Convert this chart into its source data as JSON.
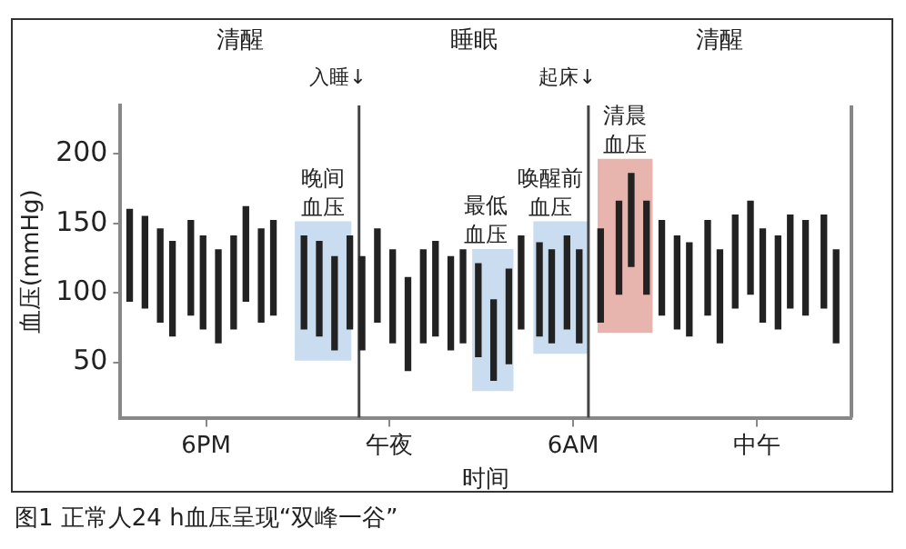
{
  "chart_data": {
    "type": "bar",
    "title": "图1 正常人24 h血压呈现“双峰一谷”",
    "xlabel": "时间",
    "ylabel": "血压(mmHg)",
    "x": [
      "--01-01T15:30",
      "--01-01T16:00",
      "--01-01T16:30",
      "--01-01T16:54",
      "--01-01T17:30",
      "--01-01T17:54",
      "--01-01T18:24",
      "--01-01T18:54",
      "--01-01T19:18",
      "--01-01T19:48",
      "--01-01T20:12",
      "--01-01T21:12",
      "--01-01T21:42",
      "--01-01T22:12",
      "--01-01T22:42",
      "--01-01T23:06",
      "--01-01T23:36",
      "--01-02T00:06",
      "--01-02T00:36",
      "--01-02T01:06",
      "--01-02T01:30",
      "--01-02T02:00",
      "--01-02T02:24",
      "--01-02T02:54",
      "--01-02T03:24",
      "--01-02T03:54",
      "--01-02T04:18",
      "--01-02T04:54",
      "--01-02T05:18",
      "--01-02T05:48",
      "--01-02T06:12",
      "--01-02T06:54",
      "--01-02T07:30",
      "--01-02T07:54",
      "--01-02T08:24",
      "--01-02T08:54",
      "--01-02T09:24",
      "--01-02T09:48",
      "--01-02T10:24",
      "--01-02T10:48",
      "--01-02T11:18",
      "--01-02T11:48",
      "--01-02T12:12",
      "--01-02T12:42",
      "--01-02T13:06",
      "--01-02T13:36",
      "--01-02T14:12",
      "--01-02T14:36"
    ],
    "base": [
      94,
      89,
      79,
      69,
      84,
      74,
      64,
      74,
      94,
      79,
      84,
      74,
      69,
      59,
      74,
      59,
      79,
      64,
      44,
      64,
      69,
      59,
      64,
      54,
      37,
      49,
      74,
      69,
      64,
      74,
      64,
      79,
      99,
      119,
      99,
      84,
      74,
      69,
      84,
      64,
      89,
      99,
      79,
      74,
      89,
      84,
      89,
      64
    ],
    "values": [
      66,
      66,
      67,
      68,
      68,
      67,
      67,
      67,
      68,
      67,
      68,
      67,
      68,
      67,
      67,
      67,
      67,
      67,
      67,
      67,
      68,
      67,
      67,
      67,
      58,
      68,
      67,
      67,
      67,
      67,
      67,
      67,
      67,
      67,
      67,
      68,
      67,
      67,
      68,
      67,
      67,
      67,
      67,
      67,
      67,
      68,
      67,
      67
    ],
    "color": "#222222",
    "xlim": [
      "--01-01T15:12",
      "--01-02T15:06"
    ],
    "xticks": [
      {
        "value": "--01-01T18:00",
        "label": "6PM"
      },
      {
        "value": "--01-02T00:00",
        "label": "午夜"
      },
      {
        "value": "--01-02T06:00",
        "label": "6AM"
      },
      {
        "value": "--01-02T12:00",
        "label": "中午"
      }
    ],
    "ylim": [
      10,
      235
    ],
    "yticks": [
      50,
      100,
      150,
      200
    ],
    "ref_lines": [
      {
        "axis": "x",
        "value": "--01-01T23:00",
        "label": "入睡↓",
        "color": "#444444"
      },
      {
        "axis": "x",
        "value": "--01-02T06:30",
        "label": "起床↓",
        "color": "#444444"
      }
    ],
    "bands": [
      {
        "axis": "x",
        "from": "--01-01T20:54",
        "to": "--01-01T22:45",
        "label": "晚间血压",
        "color": "#c9dcf0"
      },
      {
        "axis": "x",
        "from": "--01-02T02:42",
        "to": "--01-02T04:03",
        "label": "最低血压",
        "color": "#c9dcf0"
      },
      {
        "axis": "x",
        "from": "--01-02T04:42",
        "to": "--01-02T06:30",
        "label": "唤醒前血压",
        "color": "#c9dcf0"
      },
      {
        "axis": "x",
        "from": "--01-02T06:48",
        "to": "--01-02T08:36",
        "label": "清晨血压",
        "color": "#e8b4ae"
      }
    ],
    "annotations": [
      "清醒",
      "睡眠",
      "清醒"
    ],
    "grid": false,
    "legend": false
  }
}
